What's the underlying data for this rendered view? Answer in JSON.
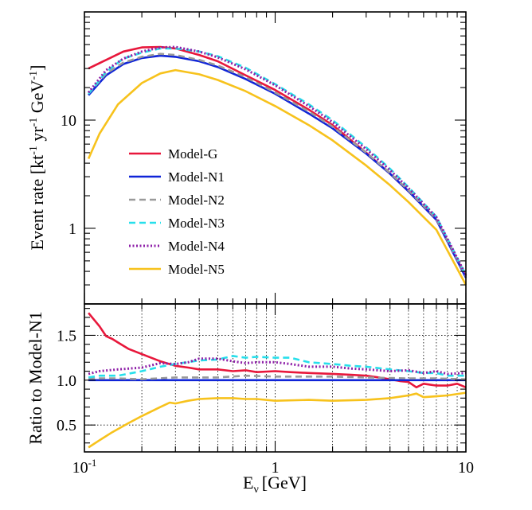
{
  "chart_data": [
    {
      "type": "line",
      "panel": "top",
      "title": "",
      "xlabel": "E",
      "xlabel_sub": "ν",
      "xlabel_unit": "[GeV]",
      "ylabel_parts": {
        "main": "Event rate [kt",
        "sup1": "-1",
        "mid1": " yr",
        "sup2": "-1",
        "mid2": " GeV",
        "sup3": "-1",
        "end": "]"
      },
      "xscale": "log",
      "yscale": "log",
      "xlim": [
        0.1,
        10
      ],
      "ylim": [
        0.2,
        100
      ],
      "ytick_labels": [
        {
          "value": 1,
          "label": "1"
        },
        {
          "value": 10,
          "label": "10"
        }
      ],
      "legend_position": "left-center",
      "series": [
        {
          "name": "Model-G",
          "color": "#e8173b",
          "style": "solid",
          "x": [
            0.105,
            0.13,
            0.16,
            0.2,
            0.25,
            0.3,
            0.4,
            0.5,
            0.7,
            1,
            1.5,
            2,
            3,
            4,
            5,
            7,
            10
          ],
          "y": [
            30,
            36,
            43,
            47,
            47.5,
            46,
            40,
            35,
            26,
            19,
            12.5,
            9,
            5,
            3.2,
            2.2,
            1.2,
            0.36
          ]
        },
        {
          "name": "Model-N1",
          "color": "#0f24d8",
          "style": "solid",
          "x": [
            0.105,
            0.13,
            0.16,
            0.2,
            0.25,
            0.3,
            0.4,
            0.5,
            0.7,
            1,
            1.5,
            2,
            3,
            4,
            5,
            7,
            10
          ],
          "y": [
            17,
            26,
            33,
            37.5,
            39.5,
            38.5,
            35,
            31,
            24,
            17.5,
            11.5,
            8.4,
            4.9,
            3.2,
            2.2,
            1.2,
            0.35
          ]
        },
        {
          "name": "Model-N2",
          "color": "#9a9a9a",
          "style": "dashed",
          "x": [
            0.105,
            0.13,
            0.16,
            0.2,
            0.25,
            0.3,
            0.4,
            0.5,
            0.7,
            1,
            1.5,
            2,
            3,
            4,
            5,
            7,
            10
          ],
          "y": [
            17.5,
            27,
            34,
            38.5,
            41,
            40,
            36,
            32,
            25,
            18,
            12,
            8.7,
            5,
            3.25,
            2.25,
            1.22,
            0.36
          ]
        },
        {
          "name": "Model-N3",
          "color": "#27dfeb",
          "style": "dashed",
          "x": [
            0.105,
            0.13,
            0.16,
            0.2,
            0.25,
            0.3,
            0.4,
            0.5,
            0.7,
            1,
            1.5,
            2,
            3,
            4,
            5,
            7,
            10
          ],
          "y": [
            17.5,
            28,
            37,
            42,
            46,
            46,
            43,
            39,
            30.5,
            21.5,
            14,
            10,
            5.6,
            3.55,
            2.4,
            1.28,
            0.37
          ]
        },
        {
          "name": "Model-N4",
          "color": "#8e1fa8",
          "style": "dotted",
          "x": [
            0.105,
            0.13,
            0.16,
            0.2,
            0.25,
            0.3,
            0.4,
            0.5,
            0.7,
            1,
            1.5,
            2,
            3,
            4,
            5,
            7,
            10
          ],
          "y": [
            18,
            29,
            37,
            43,
            47,
            47.5,
            43,
            38,
            29.5,
            21,
            13.5,
            9.6,
            5.4,
            3.45,
            2.35,
            1.27,
            0.37
          ]
        },
        {
          "name": "Model-N5",
          "color": "#f7c21c",
          "style": "solid",
          "x": [
            0.105,
            0.12,
            0.15,
            0.2,
            0.25,
            0.3,
            0.4,
            0.5,
            0.7,
            1,
            1.5,
            2,
            3,
            4,
            5,
            7,
            10
          ],
          "y": [
            4.4,
            7.5,
            14,
            22,
            27,
            29,
            26.5,
            23.5,
            18.5,
            13.5,
            9,
            6.5,
            3.8,
            2.5,
            1.75,
            0.97,
            0.3
          ]
        }
      ]
    },
    {
      "type": "line",
      "panel": "bottom",
      "title": "",
      "ylabel": "Ratio to Model-N1",
      "xscale": "log",
      "yscale": "linear",
      "xlim": [
        0.1,
        10
      ],
      "ylim": [
        0.2,
        1.85
      ],
      "ytick_labels": [
        {
          "value": 0.5,
          "label": "0.5"
        },
        {
          "value": 1.0,
          "label": "1.0"
        },
        {
          "value": 1.5,
          "label": "1.5"
        }
      ],
      "xtick_labels": [
        {
          "value": 0.1,
          "label": "10",
          "sup": "-1"
        },
        {
          "value": 1,
          "label": "1",
          "sup": ""
        },
        {
          "value": 10,
          "label": "10",
          "sup": ""
        }
      ],
      "grid": true,
      "series": [
        {
          "name": "Model-G",
          "color": "#e8173b",
          "style": "solid",
          "x": [
            0.105,
            0.12,
            0.13,
            0.14,
            0.15,
            0.17,
            0.2,
            0.25,
            0.3,
            0.35,
            0.4,
            0.5,
            0.6,
            0.7,
            0.8,
            1,
            1.2,
            1.5,
            2,
            2.5,
            3,
            3.5,
            4,
            4.5,
            5,
            5.5,
            6,
            7,
            8,
            9,
            10
          ],
          "y": [
            1.75,
            1.6,
            1.49,
            1.46,
            1.42,
            1.35,
            1.29,
            1.21,
            1.16,
            1.14,
            1.12,
            1.12,
            1.1,
            1.11,
            1.09,
            1.1,
            1.09,
            1.08,
            1.07,
            1.06,
            1.05,
            1.03,
            1.01,
            0.99,
            0.98,
            0.92,
            0.96,
            0.94,
            0.94,
            0.96,
            0.92
          ]
        },
        {
          "name": "Model-N1",
          "color": "#0f24d8",
          "style": "solid",
          "x": [
            0.105,
            10
          ],
          "y": [
            1.0,
            1.0
          ]
        },
        {
          "name": "Model-N2",
          "color": "#9a9a9a",
          "style": "dashed",
          "x": [
            0.105,
            0.15,
            0.2,
            0.3,
            0.5,
            0.7,
            1,
            2,
            3,
            5,
            7,
            10
          ],
          "y": [
            1.02,
            1.02,
            1.01,
            1.03,
            1.03,
            1.05,
            1.04,
            1.04,
            1.03,
            1.02,
            1.02,
            1.01
          ]
        },
        {
          "name": "Model-N3",
          "color": "#27dfeb",
          "style": "dashed",
          "x": [
            0.105,
            0.12,
            0.15,
            0.2,
            0.25,
            0.3,
            0.4,
            0.5,
            0.6,
            0.7,
            0.8,
            1,
            1.2,
            1.5,
            2,
            2.5,
            3,
            4,
            5,
            6,
            7,
            8,
            10
          ],
          "y": [
            1.03,
            1.05,
            1.05,
            1.1,
            1.15,
            1.18,
            1.22,
            1.23,
            1.27,
            1.25,
            1.26,
            1.25,
            1.25,
            1.2,
            1.18,
            1.16,
            1.15,
            1.12,
            1.1,
            1.08,
            1.08,
            1.05,
            1.05
          ]
        },
        {
          "name": "Model-N4",
          "color": "#8e1fa8",
          "style": "dotted",
          "x": [
            0.105,
            0.12,
            0.15,
            0.2,
            0.25,
            0.3,
            0.35,
            0.4,
            0.5,
            0.6,
            0.7,
            0.8,
            1,
            1.2,
            1.5,
            2,
            2.5,
            3,
            4,
            5,
            6,
            7,
            8,
            10
          ],
          "y": [
            1.07,
            1.1,
            1.12,
            1.14,
            1.19,
            1.18,
            1.2,
            1.24,
            1.24,
            1.21,
            1.19,
            1.2,
            1.2,
            1.18,
            1.15,
            1.15,
            1.13,
            1.12,
            1.1,
            1.11,
            1.08,
            1.1,
            1.07,
            1.08
          ]
        },
        {
          "name": "Model-N5",
          "color": "#f7c21c",
          "style": "solid",
          "x": [
            0.105,
            0.12,
            0.14,
            0.17,
            0.2,
            0.25,
            0.28,
            0.3,
            0.35,
            0.4,
            0.5,
            0.6,
            0.7,
            0.8,
            1,
            1.5,
            2,
            3,
            4,
            5,
            5.5,
            6,
            7,
            8,
            10
          ],
          "y": [
            0.25,
            0.33,
            0.42,
            0.52,
            0.6,
            0.7,
            0.75,
            0.74,
            0.77,
            0.79,
            0.8,
            0.8,
            0.79,
            0.79,
            0.77,
            0.78,
            0.77,
            0.78,
            0.8,
            0.83,
            0.85,
            0.81,
            0.82,
            0.83,
            0.86
          ]
        }
      ]
    }
  ]
}
